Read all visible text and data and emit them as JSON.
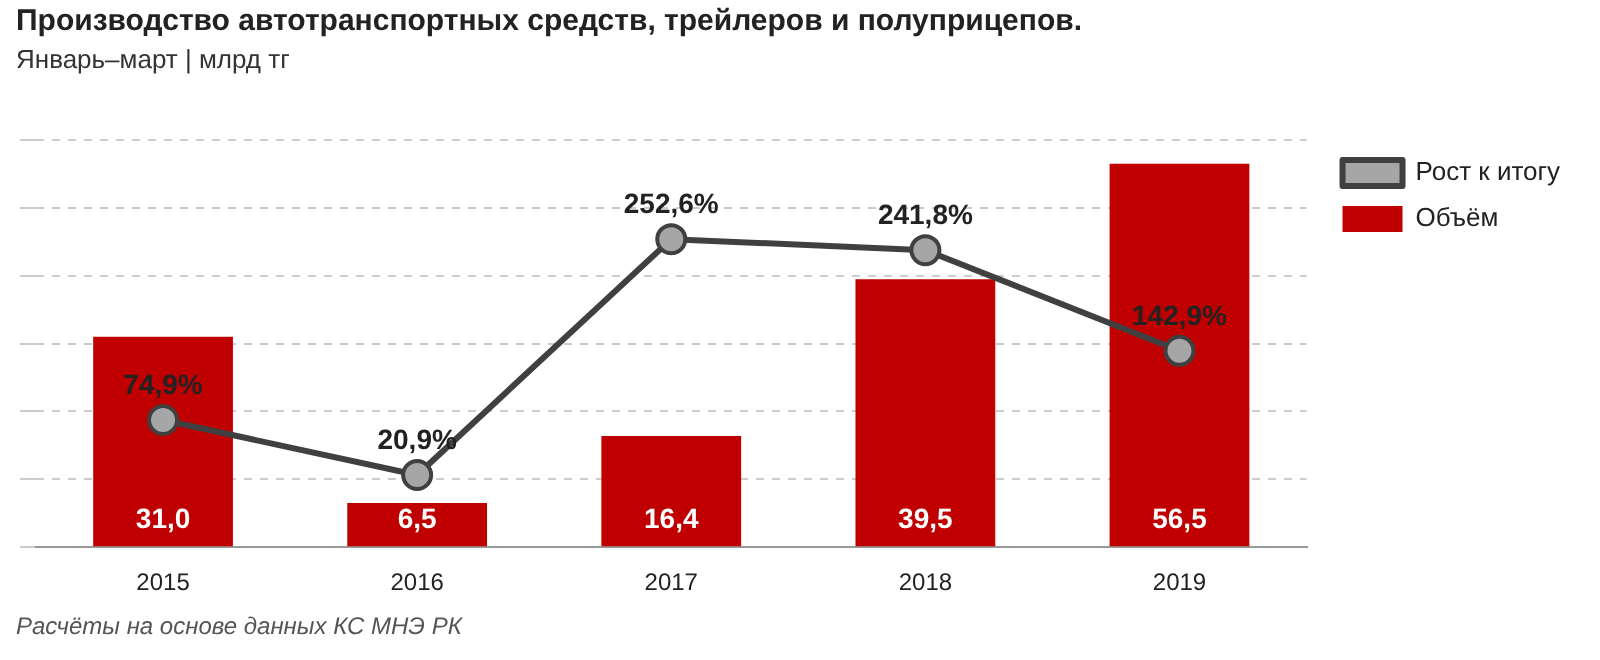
{
  "chart_data": {
    "type": "bar",
    "title": "Производство автотранспортных средств, трейлеров и полуприцепов.",
    "subtitle": "Январь–март | млрд тг",
    "categories": [
      "2015",
      "2016",
      "2017",
      "2018",
      "2019"
    ],
    "series": [
      {
        "name": "Объём",
        "color": "#c00000",
        "values": [
          31.0,
          6.5,
          16.4,
          39.5,
          56.5
        ],
        "value_labels": [
          "31,0",
          "6,5",
          "16,4",
          "39,5",
          "56,5"
        ]
      },
      {
        "name": "Рост к итогу",
        "type": "line",
        "axis": "y2",
        "color": "#404040",
        "values": [
          74.9,
          20.9,
          252.6,
          241.8,
          142.9
        ],
        "value_labels": [
          "74,9%",
          "20,9%",
          "252,6%",
          "241,8%",
          "142,9%"
        ]
      }
    ],
    "grid": "y",
    "legend": "right",
    "marker": "circle",
    "line_style": "solid",
    "tick_labels": "x",
    "annotations": [
      "Расчёты на основе данных КС МНЭ РК"
    ]
  }
}
